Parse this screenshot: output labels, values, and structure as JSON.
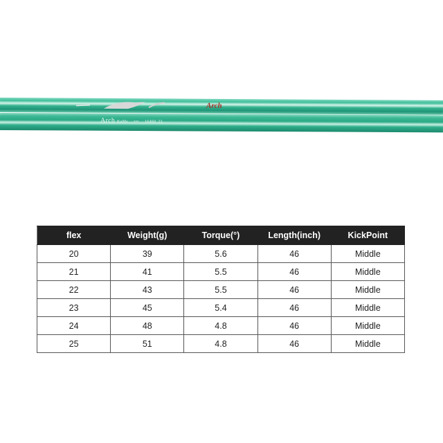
{
  "product": {
    "shaft_logo": "Arch",
    "shaft_print": {
      "brand": "Arch",
      "model": "KaMs",
      "marks": "•••",
      "code": "16460",
      "flex": "23"
    },
    "colors": {
      "shaft": "#2fae8a",
      "header_bg": "#222222",
      "logo": "#a0322a"
    }
  },
  "spec_table": {
    "headers": [
      "flex",
      "Weight(g)",
      "Torque(°)",
      "Length(inch)",
      "KickPoint"
    ],
    "rows": [
      [
        "20",
        "39",
        "5.6",
        "46",
        "Middle"
      ],
      [
        "21",
        "41",
        "5.5",
        "46",
        "Middle"
      ],
      [
        "22",
        "43",
        "5.5",
        "46",
        "Middle"
      ],
      [
        "23",
        "45",
        "5.4",
        "46",
        "Middle"
      ],
      [
        "24",
        "48",
        "4.8",
        "46",
        "Middle"
      ],
      [
        "25",
        "51",
        "4.8",
        "46",
        "Middle"
      ]
    ]
  }
}
